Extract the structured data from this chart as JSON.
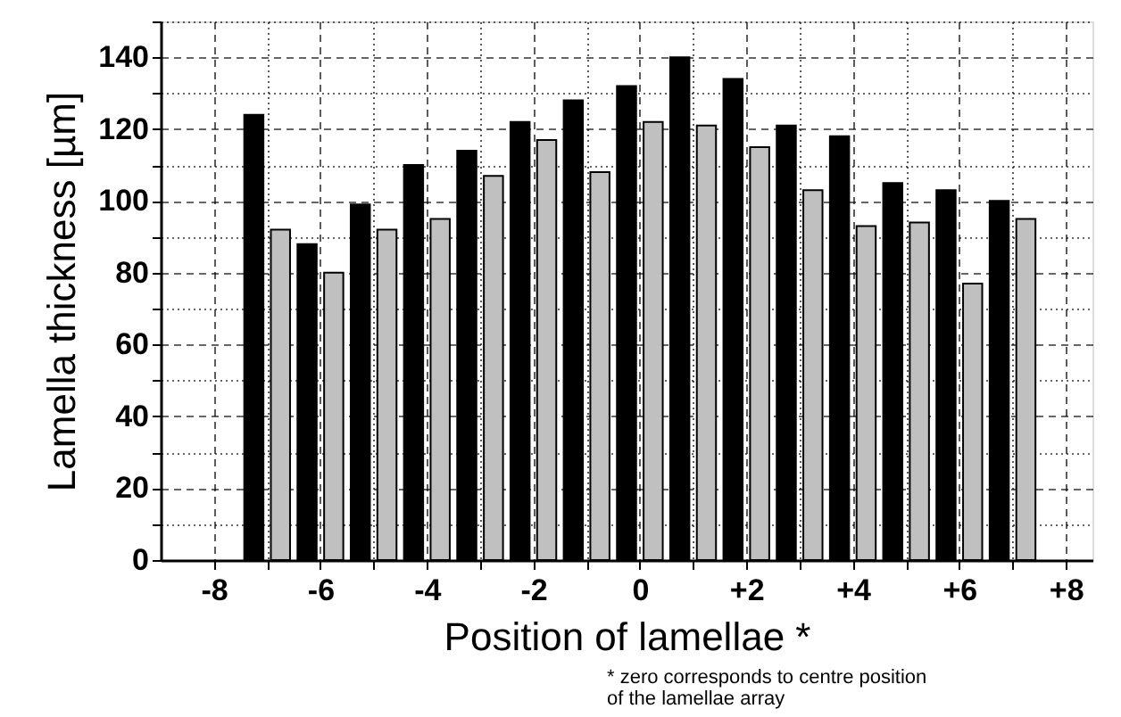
{
  "chart_data": {
    "type": "bar",
    "xlabel": "Position of lamellae *",
    "ylabel": "Lamella thickness [µm]",
    "annotations": [
      "* zero corresponds to centre position\nof the lamellae array"
    ],
    "xlim": [
      -9,
      8.5
    ],
    "ylim": [
      0,
      150
    ],
    "xticks": [
      -8,
      {
        "value": -7,
        "label": null
      },
      -6,
      {
        "value": -5,
        "label": null
      },
      -4,
      {
        "value": -3,
        "label": null
      },
      -2,
      {
        "value": -1,
        "label": null
      },
      0,
      {
        "value": 1,
        "label": null
      },
      {
        "value": 2,
        "label": "+2"
      },
      {
        "value": 3,
        "label": null
      },
      {
        "value": 4,
        "label": "+4"
      },
      {
        "value": 5,
        "label": null
      },
      {
        "value": 6,
        "label": "+6"
      },
      {
        "value": 7,
        "label": null
      },
      {
        "value": 8,
        "label": "+8"
      }
    ],
    "yticks": [
      0,
      {
        "value": 10,
        "label": null
      },
      20,
      {
        "value": 30,
        "label": null
      },
      40,
      {
        "value": 50,
        "label": null
      },
      60,
      {
        "value": 70,
        "label": null
      },
      80,
      {
        "value": 90,
        "label": null
      },
      100,
      {
        "value": 110,
        "label": null
      },
      120,
      {
        "value": 130,
        "label": null
      },
      140,
      {
        "value": 150,
        "label": null
      }
    ],
    "grid": true,
    "series": [
      {
        "color": "#000000",
        "x": [
          -7.25,
          -6.25,
          -5.25,
          -4.25,
          -3.25,
          -2.25,
          -1.25,
          -0.25,
          0.75,
          1.75,
          2.75,
          3.75,
          4.75,
          5.75,
          6.75
        ],
        "values": [
          124,
          88,
          99,
          110,
          114,
          122,
          128,
          132,
          140,
          134,
          121,
          118,
          105,
          103,
          100
        ]
      },
      {
        "color": "#c0c0c0",
        "x": [
          -6.75,
          -5.75,
          -4.75,
          -3.75,
          -2.75,
          -1.75,
          -0.75,
          0.25,
          1.25,
          2.25,
          3.25,
          4.25,
          5.25,
          6.25,
          7.25
        ],
        "values": [
          92,
          80,
          92,
          95,
          107,
          117,
          108,
          122,
          121,
          115,
          103,
          93,
          94,
          77,
          95
        ]
      }
    ]
  }
}
